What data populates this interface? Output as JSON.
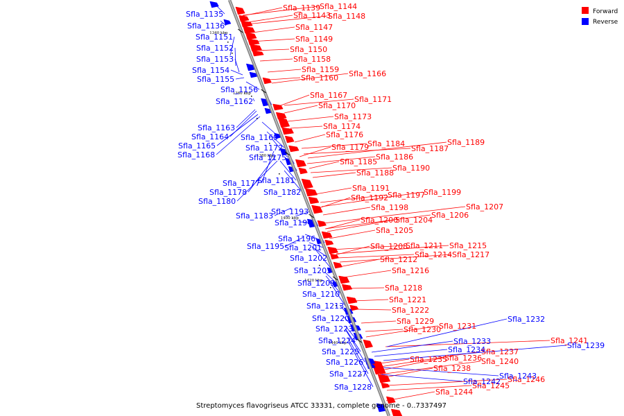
{
  "caption": "Streptomyces flavogriseus ATCC 33331, complete genome - 0..7337497",
  "legend": [
    {
      "label": "Forward",
      "color": "#ff0000"
    },
    {
      "label": "Reverse",
      "color": "#0000ff"
    }
  ],
  "colors": {
    "forward": "#ff0000",
    "reverse": "#0000ff",
    "backbone": "#888888"
  },
  "ticks": [
    "1340 kbp",
    "1360 kbp",
    "1380 kbp",
    "1400 kbp",
    "1420 kbp",
    "1440 kbp"
  ],
  "genes_forward": [
    "Sfla_1139",
    "Sfla_1144",
    "Sfla_1143",
    "Sfla_1148",
    "Sfla_1147",
    "Sfla_1149",
    "Sfla_1150",
    "Sfla_1158",
    "Sfla_1159",
    "Sfla_1160",
    "Sfla_1166",
    "Sfla_1167",
    "Sfla_1171",
    "Sfla_1170",
    "Sfla_1173",
    "Sfla_1174",
    "Sfla_1176",
    "Sfla_1184",
    "Sfla_1179",
    "Sfla_1187",
    "Sfla_1189",
    "Sfla_1186",
    "Sfla_1185",
    "Sfla_1190",
    "Sfla_1188",
    "Sfla_1191",
    "Sfla_1197",
    "Sfla_1199",
    "Sfla_1192",
    "Sfla_1207",
    "Sfla_1198",
    "Sfla_1206",
    "Sfla_1200",
    "Sfla_1204",
    "Sfla_1205",
    "Sfla_1211",
    "Sfla_1215",
    "Sfla_1208",
    "Sfla_1214",
    "Sfla_1217",
    "Sfla_1212",
    "Sfla_1216",
    "Sfla_1218",
    "Sfla_1221",
    "Sfla_1222",
    "Sfla_1229",
    "Sfla_1231",
    "Sfla_1230",
    "Sfla_1241",
    "Sfla_1237",
    "Sfla_1235",
    "Sfla_1236",
    "Sfla_1240",
    "Sfla_1238",
    "Sfla_1246",
    "Sfla_1245",
    "Sfla_1244"
  ],
  "genes_reverse": [
    "Sfla_1135",
    "Sfla_1136",
    "Sfla_1151",
    "Sfla_1152",
    "Sfla_1153",
    "Sfla_1154",
    "Sfla_1155",
    "Sfla_1156",
    "Sfla_1162",
    "Sfla_1163",
    "Sfla_1164",
    "Sfla_1169",
    "Sfla_1165",
    "Sfla_1172",
    "Sfla_1168",
    "Sfla_1175",
    "Sfla_1181",
    "Sfla_1177",
    "Sfla_1178",
    "Sfla_1182",
    "Sfla_1180",
    "Sfla_1193",
    "Sfla_1183",
    "Sfla_1194",
    "Sfla_1196",
    "Sfla_1195",
    "Sfla_1201",
    "Sfla_1202",
    "Sfla_1203",
    "Sfla_1209",
    "Sfla_1210",
    "Sfla_1213",
    "Sfla_1220",
    "Sfla_1223",
    "Sfla_1224",
    "Sfla_1225",
    "Sfla_1226",
    "Sfla_1227",
    "Sfla_1228",
    "Sfla_1232",
    "Sfla_1233",
    "Sfla_1234",
    "Sfla_1239",
    "Sfla_1243",
    "Sfla_1242"
  ]
}
